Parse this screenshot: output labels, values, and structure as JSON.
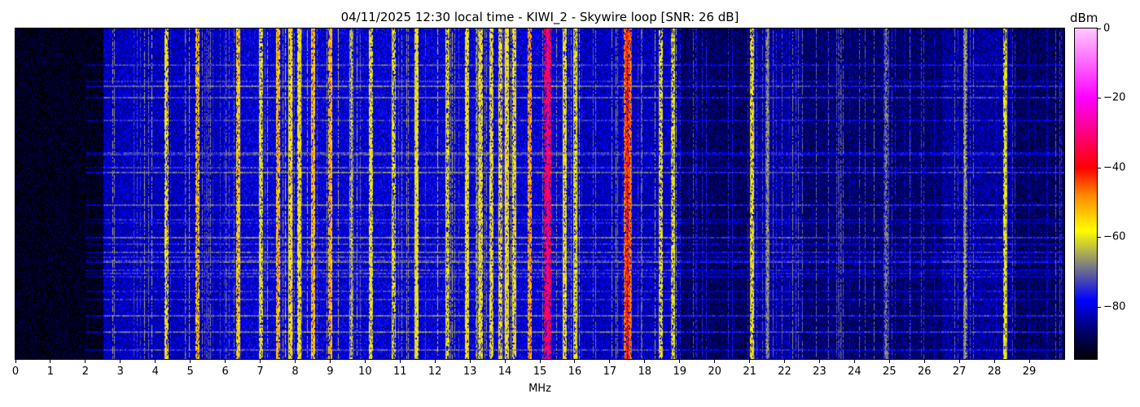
{
  "chart_data": {
    "type": "heatmap",
    "title": "04/11/2025 12:30 local time - KIWI_2 - Skywire loop [SNR: 26 dB]",
    "xlabel": "MHz",
    "ylabel": "",
    "xlim": [
      0,
      30
    ],
    "xticks": [
      0,
      1,
      2,
      3,
      4,
      5,
      6,
      7,
      8,
      9,
      10,
      11,
      12,
      13,
      14,
      15,
      16,
      17,
      18,
      19,
      20,
      21,
      22,
      23,
      24,
      25,
      26,
      27,
      28,
      29
    ],
    "colorbar": {
      "label": "dBm",
      "range": [
        -95,
        0
      ],
      "ticks": [
        0,
        -20,
        -40,
        -60,
        -80
      ],
      "tick_labels": [
        "0",
        "−20",
        "−40",
        "−60",
        "−80"
      ],
      "colormap": [
        {
          "value": -95,
          "color": "#000000"
        },
        {
          "value": -86,
          "color": "#00007a"
        },
        {
          "value": -78,
          "color": "#0000ff"
        },
        {
          "value": -68,
          "color": "#808080"
        },
        {
          "value": -58,
          "color": "#ffff00"
        },
        {
          "value": -48,
          "color": "#ff8c00"
        },
        {
          "value": -40,
          "color": "#ff0000"
        },
        {
          "value": -20,
          "color": "#ff00ff"
        },
        {
          "value": 0,
          "color": "#ffc8ff"
        }
      ]
    },
    "noise_floor_dBm": [
      {
        "from": 0,
        "to": 2.5,
        "level": -93
      },
      {
        "from": 2.5,
        "to": 6,
        "level": -82
      },
      {
        "from": 6,
        "to": 16,
        "level": -80
      },
      {
        "from": 16,
        "to": 19,
        "level": -82
      },
      {
        "from": 19,
        "to": 21,
        "level": -88
      },
      {
        "from": 21,
        "to": 22.5,
        "level": -84
      },
      {
        "from": 22.5,
        "to": 26.5,
        "level": -87
      },
      {
        "from": 26.5,
        "to": 28.5,
        "level": -84
      },
      {
        "from": 28.5,
        "to": 30,
        "level": -88
      }
    ],
    "signals": [
      {
        "f": 4.3,
        "level": -56
      },
      {
        "f": 5.2,
        "level": -50
      },
      {
        "f": 6.35,
        "level": -52
      },
      {
        "f": 7.0,
        "level": -58
      },
      {
        "f": 7.5,
        "level": -50
      },
      {
        "f": 7.85,
        "level": -55
      },
      {
        "f": 8.1,
        "level": -56
      },
      {
        "f": 8.5,
        "level": -50
      },
      {
        "f": 9.0,
        "level": -50
      },
      {
        "f": 9.6,
        "level": -62
      },
      {
        "f": 10.15,
        "level": -57
      },
      {
        "f": 10.8,
        "level": -58
      },
      {
        "f": 11.45,
        "level": -57
      },
      {
        "f": 12.35,
        "level": -58
      },
      {
        "f": 12.9,
        "level": -56
      },
      {
        "f": 13.3,
        "level": -56
      },
      {
        "f": 13.6,
        "level": -57
      },
      {
        "f": 13.85,
        "level": -55
      },
      {
        "f": 14.05,
        "level": -55
      },
      {
        "f": 14.25,
        "level": -56
      },
      {
        "f": 14.7,
        "level": -48
      },
      {
        "f": 15.2,
        "level": -28
      },
      {
        "f": 15.7,
        "level": -56
      },
      {
        "f": 16.0,
        "level": -58
      },
      {
        "f": 17.5,
        "level": -40
      },
      {
        "f": 18.45,
        "level": -57
      },
      {
        "f": 18.8,
        "level": -58
      },
      {
        "f": 21.05,
        "level": -57
      },
      {
        "f": 21.5,
        "level": -66
      },
      {
        "f": 24.9,
        "level": -68
      },
      {
        "f": 27.15,
        "level": -64
      },
      {
        "f": 28.3,
        "level": -58
      }
    ]
  }
}
